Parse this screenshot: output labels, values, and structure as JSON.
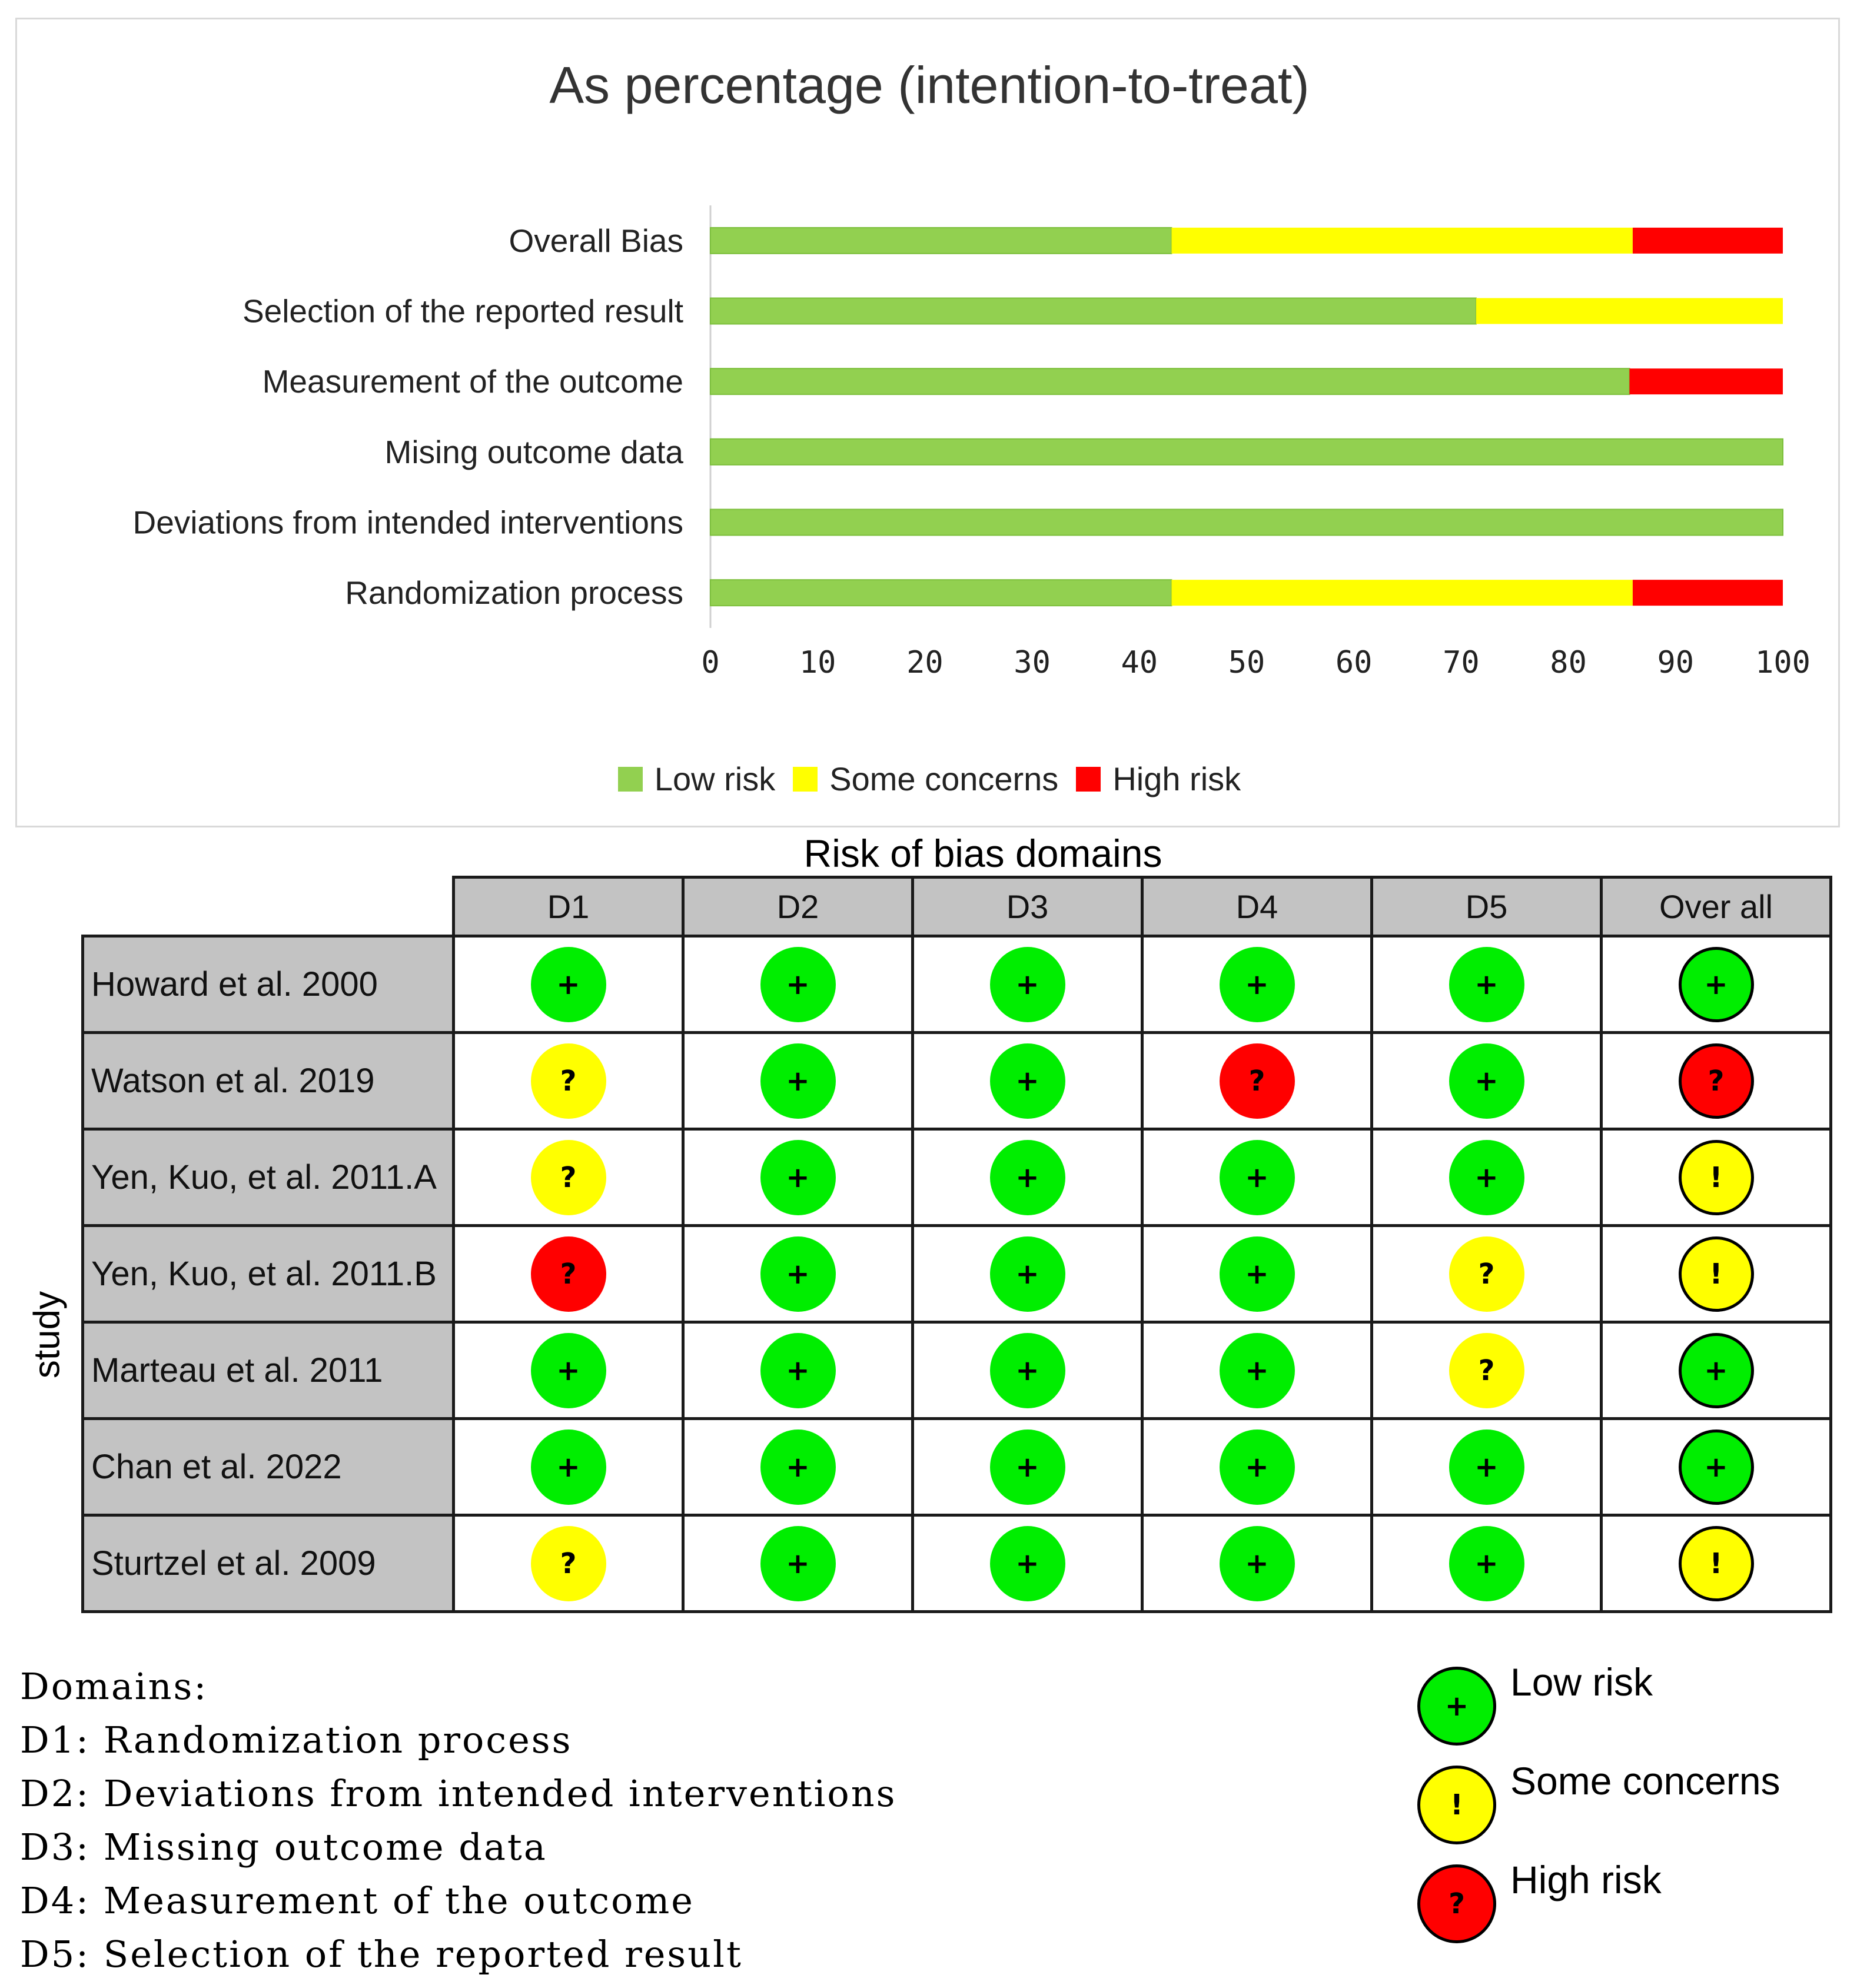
{
  "chart_data": {
    "type": "bar",
    "stacked": true,
    "orientation": "horizontal",
    "title": "As percentage (intention-to-treat)",
    "categories": [
      "Overall Bias",
      "Selection of the reported result",
      "Measurement of the outcome",
      "Mising outcome data",
      "Deviations from intended interventions",
      "Randomization process"
    ],
    "series": [
      {
        "name": "Low risk",
        "color": "#92d050",
        "values": [
          43,
          71.4,
          85.7,
          100,
          100,
          43
        ]
      },
      {
        "name": "Some concerns",
        "color": "#ffff00",
        "values": [
          43,
          28.6,
          0,
          0,
          0,
          43
        ]
      },
      {
        "name": "High risk",
        "color": "#ff0000",
        "values": [
          14,
          0,
          14.3,
          0,
          0,
          14
        ]
      }
    ],
    "xlim": [
      0,
      100
    ],
    "xticks": [
      "0",
      "10",
      "20",
      "30",
      "40",
      "50",
      "60",
      "70",
      "80",
      "90",
      "100"
    ],
    "xlabel": "",
    "ylabel": "",
    "legend_position": "bottom"
  },
  "rob": {
    "title": "Risk of bias domains",
    "axis_label": "study",
    "domain_headers": [
      "D1",
      "D2",
      "D3",
      "D4",
      "D5",
      "Over all"
    ],
    "judgements": {
      "low": {
        "symbol": "+",
        "color": "#00ee00"
      },
      "some": {
        "symbol": "?",
        "color": "#ffff00"
      },
      "high": {
        "symbol": "?",
        "color": "#ff0000"
      },
      "overall_some": {
        "symbol": "!",
        "color": "#ffff00"
      }
    },
    "studies": [
      {
        "name": "Howard et al. 2000",
        "cells": [
          "low",
          "low",
          "low",
          "low",
          "low",
          "low"
        ]
      },
      {
        "name": "Watson et al. 2019",
        "cells": [
          "some",
          "low",
          "low",
          "high",
          "low",
          "high"
        ]
      },
      {
        "name": "Yen, Kuo, et al. 2011.A",
        "cells": [
          "some",
          "low",
          "low",
          "low",
          "low",
          "overall_some"
        ]
      },
      {
        "name": "Yen, Kuo, et al. 2011.B",
        "cells": [
          "high",
          "low",
          "low",
          "low",
          "some",
          "overall_some"
        ]
      },
      {
        "name": "Marteau et al. 2011",
        "cells": [
          "low",
          "low",
          "low",
          "low",
          "some",
          "low"
        ]
      },
      {
        "name": "Chan et al. 2022",
        "cells": [
          "low",
          "low",
          "low",
          "low",
          "low",
          "low"
        ]
      },
      {
        "name": "Sturtzel et al. 2009",
        "cells": [
          "some",
          "low",
          "low",
          "low",
          "low",
          "overall_some"
        ]
      }
    ]
  },
  "domains": {
    "heading": "Domains:",
    "items": [
      "D1: Randomization process",
      "D2: Deviations from intended interventions",
      "D3: Missing outcome data",
      "D4: Measurement of the outcome",
      "D5: Selection of the reported result"
    ]
  },
  "rob_legend": [
    {
      "label": "Low risk",
      "symbol": "+",
      "color": "#00ee00"
    },
    {
      "label": "Some concerns",
      "symbol": "!",
      "color": "#ffff00"
    },
    {
      "label": "High risk",
      "symbol": "?",
      "color": "#ff0000"
    }
  ]
}
